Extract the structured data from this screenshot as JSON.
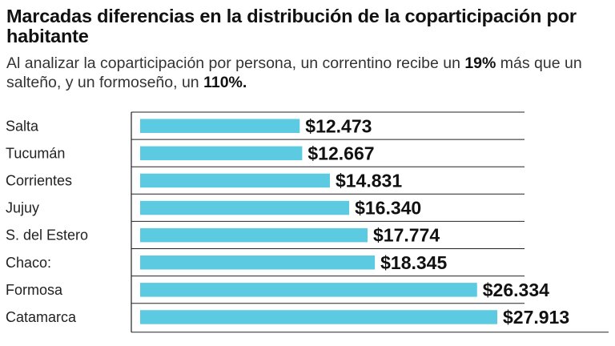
{
  "title": "Marcadas diferencias en la distribución de la coparticipación por habitante",
  "subtitle": {
    "part1": "Al analizar la coparticipación por persona, un correntino recibe un ",
    "highlight1": "19%",
    "part2": " más que un salteño, y un formoseño, un ",
    "highlight2": "110%."
  },
  "colors": {
    "bar": "#5ccbe2",
    "gridline": "#222222",
    "text": "#111111"
  },
  "chart_data": {
    "type": "bar",
    "orientation": "horizontal",
    "categories": [
      "Salta",
      "Tucumán",
      "Corrientes",
      "Jujuy",
      "S. del Estero",
      "Chaco:",
      "Formosa",
      "Catamarca"
    ],
    "values": [
      12473,
      12667,
      14831,
      16340,
      17774,
      18345,
      26334,
      27913
    ],
    "value_labels": [
      "$12.473",
      "$12.667",
      "$14.831",
      "$16.340",
      "$17.774",
      "$18.345",
      "$26.334",
      "$27.913"
    ],
    "xlim": [
      0,
      27913
    ],
    "grid": true,
    "legend": "none"
  }
}
